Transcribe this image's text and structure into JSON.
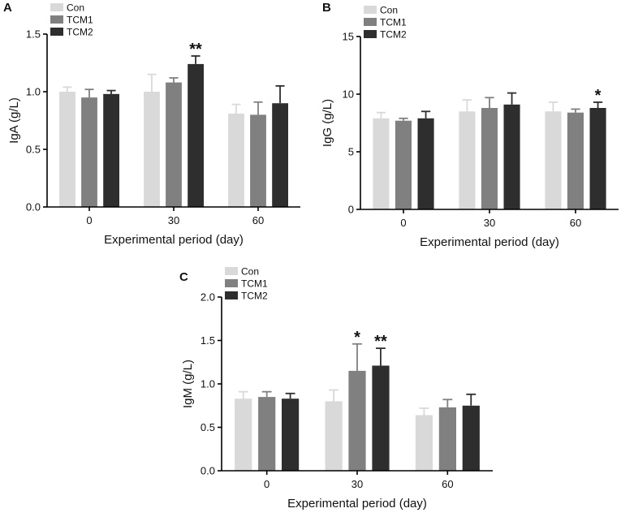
{
  "chart_data": [
    {
      "panel": "A",
      "type": "bar",
      "categories": [
        "0",
        "30",
        "60"
      ],
      "xlabel": "Experimental period (day)",
      "ylabel": "IgA (g/L)",
      "ylim": [
        0,
        1.5
      ],
      "yticks": [
        "0.0",
        "0.5",
        "1.0",
        "1.5"
      ],
      "legend_position": "top-left",
      "series": [
        {
          "name": "Con",
          "color": "#d9d9d9",
          "values": [
            1.0,
            1.0,
            0.81
          ],
          "errors": [
            0.04,
            0.15,
            0.08
          ]
        },
        {
          "name": "TCM1",
          "color": "#808080",
          "values": [
            0.95,
            1.08,
            0.8
          ],
          "errors": [
            0.07,
            0.04,
            0.11
          ]
        },
        {
          "name": "TCM2",
          "color": "#2e2e2e",
          "values": [
            0.98,
            1.24,
            0.9
          ],
          "errors": [
            0.03,
            0.07,
            0.15
          ]
        }
      ],
      "significance": [
        {
          "category": "30",
          "series": "TCM2",
          "label": "**"
        }
      ]
    },
    {
      "panel": "B",
      "type": "bar",
      "categories": [
        "0",
        "30",
        "60"
      ],
      "xlabel": "Experimental period (day)",
      "ylabel": "IgG (g/L)",
      "ylim": [
        0,
        15
      ],
      "yticks": [
        "0",
        "5",
        "10",
        "15"
      ],
      "legend_position": "top-left",
      "series": [
        {
          "name": "Con",
          "color": "#d9d9d9",
          "values": [
            7.9,
            8.5,
            8.5
          ],
          "errors": [
            0.5,
            1.0,
            0.8
          ]
        },
        {
          "name": "TCM1",
          "color": "#808080",
          "values": [
            7.7,
            8.8,
            8.4
          ],
          "errors": [
            0.2,
            0.9,
            0.3
          ]
        },
        {
          "name": "TCM2",
          "color": "#2e2e2e",
          "values": [
            7.9,
            9.1,
            8.8
          ],
          "errors": [
            0.6,
            1.0,
            0.5
          ]
        }
      ],
      "significance": [
        {
          "category": "60",
          "series": "TCM2",
          "label": "*"
        }
      ]
    },
    {
      "panel": "C",
      "type": "bar",
      "categories": [
        "0",
        "30",
        "60"
      ],
      "xlabel": "Experimental period (day)",
      "ylabel": "IgM (g/L)",
      "ylim": [
        0,
        2.0
      ],
      "yticks": [
        "0.0",
        "0.5",
        "1.0",
        "1.5",
        "2.0"
      ],
      "legend_position": "top-left",
      "series": [
        {
          "name": "Con",
          "color": "#d9d9d9",
          "values": [
            0.83,
            0.8,
            0.64
          ],
          "errors": [
            0.08,
            0.13,
            0.08
          ]
        },
        {
          "name": "TCM1",
          "color": "#808080",
          "values": [
            0.85,
            1.15,
            0.73
          ],
          "errors": [
            0.06,
            0.31,
            0.09
          ]
        },
        {
          "name": "TCM2",
          "color": "#2e2e2e",
          "values": [
            0.83,
            1.21,
            0.75
          ],
          "errors": [
            0.06,
            0.2,
            0.13
          ]
        }
      ],
      "significance": [
        {
          "category": "30",
          "series": "TCM1",
          "label": "*"
        },
        {
          "category": "30",
          "series": "TCM2",
          "label": "**"
        }
      ]
    }
  ]
}
